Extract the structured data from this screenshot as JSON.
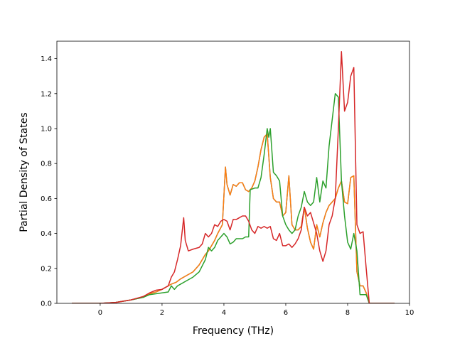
{
  "chart_data": {
    "type": "line",
    "title": "",
    "xlabel": "Frequency (THz)",
    "ylabel": "Partial Density of States",
    "xlim": [
      -1.4,
      10.0
    ],
    "ylim": [
      0.0,
      1.5
    ],
    "xticks": [
      0,
      2,
      4,
      6,
      8,
      10
    ],
    "yticks": [
      0.0,
      0.2,
      0.4,
      0.6,
      0.8,
      1.0,
      1.2,
      1.4
    ],
    "xtick_labels": [
      "0",
      "2",
      "4",
      "6",
      "8",
      "10"
    ],
    "ytick_labels": [
      "0.0",
      "0.2",
      "0.4",
      "0.6",
      "0.8",
      "1.0",
      "1.2",
      "1.4"
    ],
    "grid": false,
    "legend": "none",
    "series": [
      {
        "color": "#1f77b4",
        "x": [
          -0.9,
          0.0,
          0.5,
          1.0,
          1.4,
          1.6,
          1.8,
          2.0,
          2.2,
          2.3,
          2.45,
          2.6,
          2.8,
          3.0,
          3.2,
          3.4,
          3.5,
          3.6,
          3.7,
          3.8,
          3.95,
          4.05,
          4.1,
          4.2,
          4.3,
          4.4,
          4.5,
          4.6,
          4.7,
          4.8,
          4.9,
          5.0,
          5.1,
          5.2,
          5.3,
          5.4,
          5.5,
          5.6,
          5.7,
          5.8,
          5.9,
          6.0,
          6.1,
          6.2,
          6.3,
          6.4,
          6.5,
          6.6,
          6.7,
          6.8,
          6.9,
          7.0,
          7.1,
          7.2,
          7.3,
          7.4,
          7.5,
          7.6,
          7.7,
          7.8,
          7.9,
          8.0,
          8.1,
          8.2,
          8.3,
          8.4,
          8.5,
          8.6,
          8.7,
          9.5
        ],
        "y": [
          0.0,
          0.0,
          0.005,
          0.02,
          0.035,
          0.055,
          0.065,
          0.08,
          0.1,
          0.11,
          0.12,
          0.14,
          0.16,
          0.18,
          0.22,
          0.28,
          0.3,
          0.33,
          0.36,
          0.4,
          0.45,
          0.78,
          0.68,
          0.62,
          0.68,
          0.67,
          0.69,
          0.69,
          0.65,
          0.64,
          0.66,
          0.7,
          0.78,
          0.88,
          0.95,
          0.97,
          0.72,
          0.6,
          0.58,
          0.58,
          0.5,
          0.52,
          0.73,
          0.45,
          0.42,
          0.42,
          0.44,
          0.55,
          0.43,
          0.35,
          0.31,
          0.45,
          0.38,
          0.46,
          0.52,
          0.56,
          0.58,
          0.6,
          0.66,
          0.7,
          0.58,
          0.57,
          0.72,
          0.73,
          0.18,
          0.1,
          0.1,
          0.06,
          0.0,
          0.0
        ]
      },
      {
        "color": "#ff7f0e",
        "x": [
          -0.9,
          0.0,
          0.5,
          1.0,
          1.4,
          1.6,
          1.8,
          2.0,
          2.2,
          2.3,
          2.45,
          2.6,
          2.8,
          3.0,
          3.2,
          3.4,
          3.5,
          3.6,
          3.7,
          3.8,
          3.95,
          4.05,
          4.1,
          4.2,
          4.3,
          4.4,
          4.5,
          4.6,
          4.7,
          4.8,
          4.9,
          5.0,
          5.1,
          5.2,
          5.3,
          5.4,
          5.5,
          5.6,
          5.7,
          5.8,
          5.9,
          6.0,
          6.1,
          6.2,
          6.3,
          6.4,
          6.5,
          6.6,
          6.7,
          6.8,
          6.9,
          7.0,
          7.1,
          7.2,
          7.3,
          7.4,
          7.5,
          7.6,
          7.7,
          7.8,
          7.9,
          8.0,
          8.1,
          8.2,
          8.3,
          8.4,
          8.5,
          8.6,
          8.7,
          9.5
        ],
        "y": [
          0.0,
          0.0,
          0.005,
          0.02,
          0.035,
          0.055,
          0.065,
          0.08,
          0.1,
          0.11,
          0.12,
          0.14,
          0.16,
          0.18,
          0.22,
          0.28,
          0.3,
          0.33,
          0.36,
          0.4,
          0.45,
          0.78,
          0.68,
          0.62,
          0.68,
          0.67,
          0.69,
          0.69,
          0.65,
          0.64,
          0.66,
          0.7,
          0.78,
          0.88,
          0.95,
          0.97,
          0.72,
          0.6,
          0.58,
          0.58,
          0.5,
          0.52,
          0.73,
          0.45,
          0.42,
          0.42,
          0.44,
          0.55,
          0.43,
          0.35,
          0.31,
          0.45,
          0.38,
          0.46,
          0.52,
          0.56,
          0.58,
          0.6,
          0.66,
          0.7,
          0.58,
          0.57,
          0.72,
          0.73,
          0.18,
          0.1,
          0.1,
          0.06,
          0.0,
          0.0
        ]
      },
      {
        "color": "#2ca02c",
        "x": [
          -0.9,
          0.0,
          0.5,
          1.0,
          1.4,
          1.6,
          1.8,
          2.0,
          2.2,
          2.3,
          2.4,
          2.5,
          2.6,
          2.8,
          3.0,
          3.2,
          3.4,
          3.5,
          3.6,
          3.7,
          3.8,
          3.9,
          4.0,
          4.1,
          4.2,
          4.3,
          4.4,
          4.5,
          4.6,
          4.7,
          4.8,
          4.85,
          5.0,
          5.1,
          5.2,
          5.3,
          5.4,
          5.45,
          5.5,
          5.6,
          5.7,
          5.8,
          5.9,
          6.0,
          6.1,
          6.2,
          6.3,
          6.4,
          6.5,
          6.6,
          6.7,
          6.8,
          6.9,
          7.0,
          7.1,
          7.2,
          7.3,
          7.4,
          7.5,
          7.6,
          7.7,
          7.8,
          7.9,
          8.0,
          8.1,
          8.2,
          8.3,
          8.4,
          8.5,
          8.6,
          8.7,
          9.5
        ],
        "y": [
          0.0,
          0.0,
          0.005,
          0.02,
          0.035,
          0.05,
          0.055,
          0.06,
          0.065,
          0.1,
          0.08,
          0.1,
          0.11,
          0.13,
          0.15,
          0.18,
          0.25,
          0.32,
          0.3,
          0.32,
          0.36,
          0.38,
          0.4,
          0.38,
          0.34,
          0.35,
          0.37,
          0.37,
          0.37,
          0.38,
          0.38,
          0.65,
          0.66,
          0.66,
          0.72,
          0.85,
          1.0,
          0.95,
          1.0,
          0.75,
          0.73,
          0.7,
          0.5,
          0.45,
          0.42,
          0.4,
          0.42,
          0.5,
          0.55,
          0.64,
          0.58,
          0.56,
          0.58,
          0.72,
          0.58,
          0.7,
          0.66,
          0.9,
          1.05,
          1.2,
          1.18,
          0.7,
          0.5,
          0.35,
          0.31,
          0.4,
          0.3,
          0.05,
          0.05,
          0.05,
          0.0,
          0.0
        ]
      },
      {
        "color": "#d62728",
        "x": [
          -0.9,
          0.0,
          0.5,
          1.0,
          1.4,
          1.6,
          1.8,
          2.0,
          2.2,
          2.3,
          2.4,
          2.5,
          2.6,
          2.7,
          2.75,
          2.85,
          3.0,
          3.2,
          3.3,
          3.4,
          3.5,
          3.6,
          3.7,
          3.8,
          3.9,
          4.0,
          4.1,
          4.2,
          4.3,
          4.4,
          4.5,
          4.6,
          4.7,
          4.8,
          4.9,
          5.0,
          5.1,
          5.2,
          5.3,
          5.4,
          5.5,
          5.6,
          5.7,
          5.8,
          5.9,
          6.0,
          6.1,
          6.2,
          6.3,
          6.4,
          6.5,
          6.6,
          6.7,
          6.8,
          6.9,
          7.0,
          7.1,
          7.2,
          7.3,
          7.4,
          7.5,
          7.6,
          7.7,
          7.8,
          7.9,
          8.0,
          8.1,
          8.2,
          8.3,
          8.4,
          8.5,
          8.6,
          8.7,
          9.5
        ],
        "y": [
          0.0,
          0.0,
          0.005,
          0.02,
          0.04,
          0.06,
          0.075,
          0.08,
          0.1,
          0.15,
          0.18,
          0.25,
          0.33,
          0.49,
          0.36,
          0.3,
          0.31,
          0.32,
          0.34,
          0.4,
          0.38,
          0.4,
          0.45,
          0.44,
          0.47,
          0.48,
          0.47,
          0.42,
          0.48,
          0.48,
          0.49,
          0.5,
          0.5,
          0.47,
          0.42,
          0.4,
          0.44,
          0.43,
          0.44,
          0.43,
          0.44,
          0.37,
          0.36,
          0.4,
          0.33,
          0.33,
          0.34,
          0.32,
          0.34,
          0.37,
          0.42,
          0.55,
          0.5,
          0.52,
          0.46,
          0.4,
          0.3,
          0.24,
          0.3,
          0.45,
          0.5,
          0.6,
          1.0,
          1.44,
          1.1,
          1.15,
          1.3,
          1.35,
          0.45,
          0.4,
          0.41,
          0.2,
          0.0,
          0.0
        ]
      }
    ]
  }
}
